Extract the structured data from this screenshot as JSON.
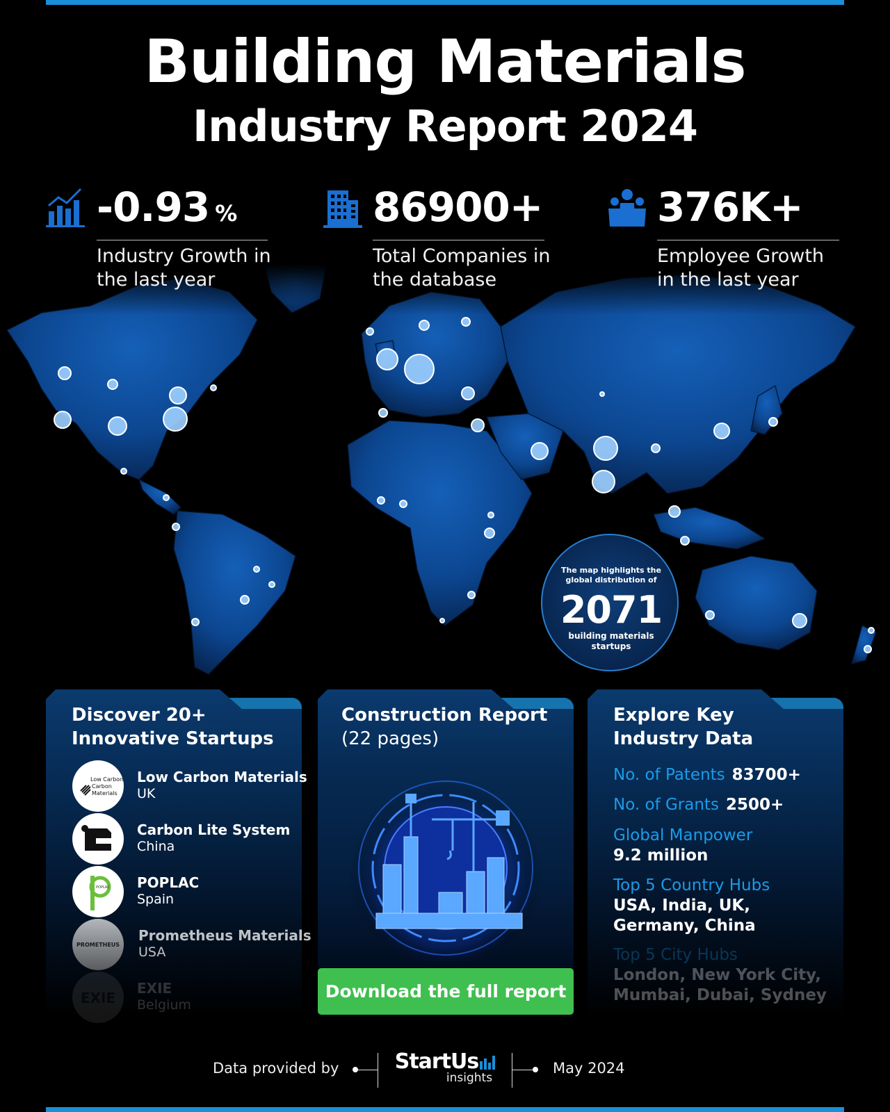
{
  "header": {
    "title": "Building Materials",
    "subtitle": "Industry Report 2024"
  },
  "stats": [
    {
      "icon": "growth-chart-icon",
      "value": "-0.93",
      "unit": "%",
      "label": "Industry Growth in the last year"
    },
    {
      "icon": "building-icon",
      "value": "86900+",
      "label": "Total Companies in the database"
    },
    {
      "icon": "people-icon",
      "value": "376K+",
      "label": "Employee Growth in the last year"
    }
  ],
  "map_badge": {
    "top_text": "The map highlights the global distribution of",
    "number": "2071",
    "bottom_text": "building materials startups"
  },
  "startups_card": {
    "title": "Discover 20+ Innovative Startups",
    "items": [
      {
        "name": "Low Carbon Materials",
        "country": "UK",
        "logo_text": "Low Carbon Materials"
      },
      {
        "name": "Carbon Lite System",
        "country": "China"
      },
      {
        "name": "POPLAC",
        "country": "Spain",
        "logo_text": "POPLAC"
      },
      {
        "name": "Prometheus Materials",
        "country": "USA",
        "logo_text": "PROMETHEUS"
      },
      {
        "name": "EXIE",
        "country": "Belgium",
        "logo_text": "EXIE"
      }
    ]
  },
  "report_card": {
    "title_bold": "Construction Report",
    "title_light": "(22 pages)",
    "button_label": "Download the full report"
  },
  "data_card": {
    "title": "Explore Key Industry Data",
    "patents_label": "No. of Patents",
    "patents_value": "83700+",
    "grants_label": "No. of Grants",
    "grants_value": "2500+",
    "manpower_label": "Global Manpower",
    "manpower_value": "9.2 million",
    "country_hubs_label": "Top 5 Country Hubs",
    "country_hubs_value": "USA, India, UK, Germany, China",
    "city_hubs_label": "Top 5 City Hubs",
    "city_hubs_value": "London, New York City, Mumbai, Dubai, Sydney"
  },
  "footer": {
    "provided_by": "Data provided by",
    "brand": "StartUs",
    "brand_sub": "insights",
    "date": "May 2024"
  },
  "colors": {
    "accent_blue": "#1a8fd8",
    "map_blue": "#0d4ea0",
    "button_green": "#3fbf4f"
  }
}
